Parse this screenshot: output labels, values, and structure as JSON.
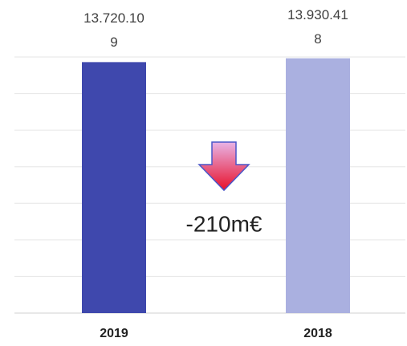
{
  "chart_data": {
    "type": "bar",
    "categories": [
      "2019",
      "2018"
    ],
    "values": [
      13720109,
      13930418
    ],
    "value_labels": [
      "13.720.109",
      "13.930.418"
    ],
    "colors": [
      "#3f48ad",
      "#aab0e0"
    ],
    "ylim": [
      0,
      14000000
    ],
    "yticks": [
      0,
      2000000,
      4000000,
      6000000,
      8000000,
      10000000,
      12000000,
      14000000
    ],
    "grid": true,
    "annotation": "-210m€"
  }
}
